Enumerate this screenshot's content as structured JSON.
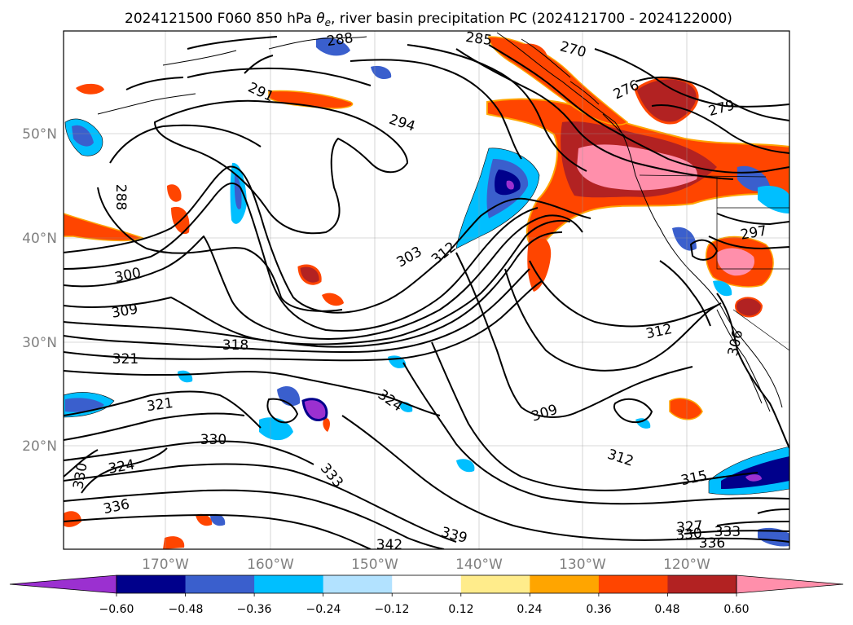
{
  "title": {
    "prefix": "2024121500 F060 850 hPa ",
    "symbol": "θ",
    "subscript": "e",
    "suffix": ", river basin precipitation PC (2024121700 - 2024122000)"
  },
  "map": {
    "lat_ticks": [
      "50°N",
      "40°N",
      "30°N",
      "20°N"
    ],
    "lon_ticks": [
      "170°W",
      "160°W",
      "150°W",
      "140°W",
      "130°W",
      "120°W"
    ],
    "gridlines": true
  },
  "contour_labels": [
    "288",
    "285",
    "270",
    "291",
    "294",
    "276",
    "279",
    "288",
    "297",
    "300",
    "303",
    "312",
    "309",
    "318",
    "321",
    "312",
    "306",
    "321",
    "324",
    "309",
    "330",
    "333",
    "312",
    "324",
    "330",
    "336",
    "315",
    "327",
    "339",
    "342",
    "330",
    "336",
    "333"
  ],
  "colorbar": {
    "colors": [
      "#9b30d0",
      "#00008b",
      "#3a5fcd",
      "#00bfff",
      "#b2e2ff",
      "#ffffff",
      "#ffec8b",
      "#ffa500",
      "#ff4500",
      "#b22222",
      "#ff8fab"
    ],
    "tick_labels": [
      "−0.60",
      "−0.48",
      "−0.36",
      "−0.24",
      "−0.12",
      "0.12",
      "0.24",
      "0.36",
      "0.48",
      "0.60"
    ],
    "extend": "both"
  }
}
